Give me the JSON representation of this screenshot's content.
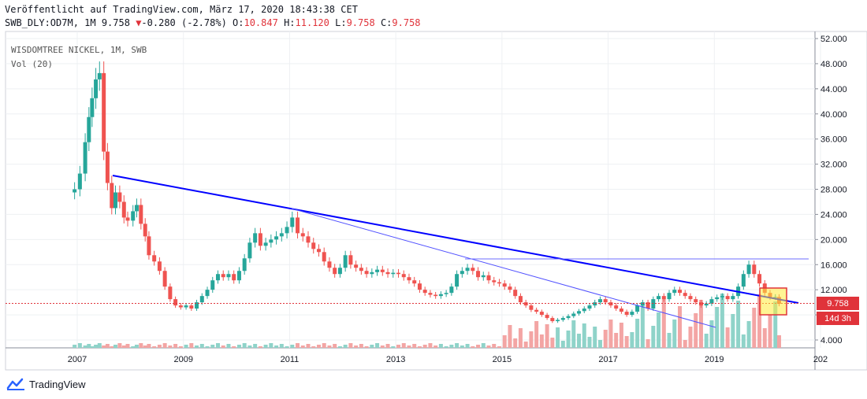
{
  "header": {
    "published": "Veröffentlicht auf TradingView.com, März 17, 2020 18:43:38 CET",
    "symbol_line": "SWB_DLY:OD7M, 1M",
    "last": "9.758",
    "change_arrow": "▼",
    "change": "-0.280 (-2.78%)",
    "o_label": "O:",
    "o_value": "10.847",
    "h_label": "H:",
    "h_value": "11.120",
    "l_label": "L:",
    "l_value": "9.758",
    "c_label": "C:",
    "c_value": "9.758"
  },
  "legend": {
    "title": "WISDOMTREE NICKEL, 1M, SWB",
    "volume": "Vol (20)"
  },
  "footer": {
    "brand": "TradingView"
  },
  "colors": {
    "up": "#26a69a",
    "down": "#ef5350",
    "up_vol": "#8fd3c9",
    "down_vol": "#f3a5a4",
    "trend": "#0000ff",
    "level": "#6d6dff",
    "last_price": "#e0333a",
    "highlight_fill": "#ffeb3b",
    "highlight_border": "#e0333a"
  },
  "chart_data": {
    "type": "candlestick",
    "title": "WISDOMTREE NICKEL, 1M, SWB",
    "y_axis": {
      "ticks": [
        "52.000",
        "48.000",
        "44.000",
        "40.000",
        "36.000",
        "32.000",
        "28.000",
        "24.000",
        "20.000",
        "16.000",
        "12.000",
        "8.000",
        "4.000"
      ],
      "range": [
        1.5,
        53
      ]
    },
    "x_axis": {
      "ticks": [
        "2007",
        "2009",
        "2011",
        "2013",
        "2015",
        "2017",
        "2019",
        "202"
      ],
      "range": [
        2006.0,
        2021.0
      ]
    },
    "last_price_label": "9.758",
    "countdown_label": "14d 3h",
    "price_path": [
      [
        2006.85,
        27.5
      ],
      [
        2006.95,
        28.0
      ],
      [
        2007.05,
        30.5
      ],
      [
        2007.15,
        35.5
      ],
      [
        2007.22,
        39.5
      ],
      [
        2007.28,
        42.5
      ],
      [
        2007.35,
        45.5
      ],
      [
        2007.42,
        46.5
      ],
      [
        2007.5,
        34.0
      ],
      [
        2007.57,
        29.0
      ],
      [
        2007.65,
        25.0
      ],
      [
        2007.72,
        27.5
      ],
      [
        2007.8,
        26.0
      ],
      [
        2007.88,
        23.5
      ],
      [
        2007.95,
        23.0
      ],
      [
        2008.05,
        24.5
      ],
      [
        2008.12,
        25.5
      ],
      [
        2008.2,
        22.5
      ],
      [
        2008.28,
        20.5
      ],
      [
        2008.35,
        17.5
      ],
      [
        2008.45,
        16.5
      ],
      [
        2008.55,
        15.0
      ],
      [
        2008.65,
        12.5
      ],
      [
        2008.75,
        10.5
      ],
      [
        2008.85,
        9.5
      ],
      [
        2008.95,
        9.2
      ],
      [
        2009.05,
        9.5
      ],
      [
        2009.15,
        9.0
      ],
      [
        2009.25,
        10.0
      ],
      [
        2009.35,
        11.0
      ],
      [
        2009.45,
        12.0
      ],
      [
        2009.55,
        13.5
      ],
      [
        2009.65,
        14.5
      ],
      [
        2009.75,
        14.0
      ],
      [
        2009.85,
        14.5
      ],
      [
        2009.95,
        13.5
      ],
      [
        2010.05,
        15.0
      ],
      [
        2010.15,
        17.0
      ],
      [
        2010.25,
        19.5
      ],
      [
        2010.35,
        21.0
      ],
      [
        2010.45,
        19.0
      ],
      [
        2010.55,
        19.5
      ],
      [
        2010.65,
        20.0
      ],
      [
        2010.75,
        20.5
      ],
      [
        2010.85,
        21.0
      ],
      [
        2010.95,
        22.0
      ],
      [
        2011.05,
        23.5
      ],
      [
        2011.15,
        21.0
      ],
      [
        2011.25,
        20.5
      ],
      [
        2011.35,
        19.5
      ],
      [
        2011.45,
        18.5
      ],
      [
        2011.55,
        18.0
      ],
      [
        2011.65,
        16.5
      ],
      [
        2011.75,
        15.5
      ],
      [
        2011.85,
        14.5
      ],
      [
        2011.95,
        15.5
      ],
      [
        2012.05,
        17.5
      ],
      [
        2012.15,
        16.0
      ],
      [
        2012.25,
        15.5
      ],
      [
        2012.35,
        15.0
      ],
      [
        2012.45,
        14.5
      ],
      [
        2012.55,
        14.8
      ],
      [
        2012.65,
        15.2
      ],
      [
        2012.75,
        14.8
      ],
      [
        2012.85,
        14.5
      ],
      [
        2012.95,
        14.7
      ],
      [
        2013.05,
        14.5
      ],
      [
        2013.15,
        14.0
      ],
      [
        2013.25,
        13.5
      ],
      [
        2013.35,
        13.0
      ],
      [
        2013.45,
        12.0
      ],
      [
        2013.55,
        11.5
      ],
      [
        2013.65,
        11.2
      ],
      [
        2013.75,
        11.0
      ],
      [
        2013.85,
        11.3
      ],
      [
        2013.95,
        11.5
      ],
      [
        2014.05,
        12.5
      ],
      [
        2014.15,
        14.5
      ],
      [
        2014.25,
        15.0
      ],
      [
        2014.35,
        15.5
      ],
      [
        2014.45,
        15.0
      ],
      [
        2014.55,
        14.0
      ],
      [
        2014.65,
        14.3
      ],
      [
        2014.75,
        13.5
      ],
      [
        2014.85,
        13.2
      ],
      [
        2014.95,
        13.0
      ],
      [
        2015.05,
        12.5
      ],
      [
        2015.15,
        12.0
      ],
      [
        2015.25,
        11.0
      ],
      [
        2015.35,
        10.0
      ],
      [
        2015.45,
        9.5
      ],
      [
        2015.55,
        8.8
      ],
      [
        2015.65,
        8.5
      ],
      [
        2015.75,
        8.0
      ],
      [
        2015.85,
        7.5
      ],
      [
        2015.95,
        7.0
      ],
      [
        2016.05,
        7.2
      ],
      [
        2016.15,
        7.5
      ],
      [
        2016.25,
        7.8
      ],
      [
        2016.35,
        8.2
      ],
      [
        2016.45,
        8.6
      ],
      [
        2016.55,
        9.0
      ],
      [
        2016.65,
        9.5
      ],
      [
        2016.75,
        10.0
      ],
      [
        2016.85,
        10.5
      ],
      [
        2016.95,
        10.0
      ],
      [
        2017.05,
        9.5
      ],
      [
        2017.15,
        9.0
      ],
      [
        2017.25,
        8.5
      ],
      [
        2017.35,
        8.0
      ],
      [
        2017.45,
        8.5
      ],
      [
        2017.55,
        9.5
      ],
      [
        2017.65,
        10.0
      ],
      [
        2017.75,
        9.0
      ],
      [
        2017.85,
        10.5
      ],
      [
        2017.95,
        11.0
      ],
      [
        2018.05,
        10.5
      ],
      [
        2018.15,
        11.5
      ],
      [
        2018.25,
        12.0
      ],
      [
        2018.35,
        11.5
      ],
      [
        2018.45,
        11.0
      ],
      [
        2018.55,
        10.5
      ],
      [
        2018.65,
        10.0
      ],
      [
        2018.75,
        9.5
      ],
      [
        2018.85,
        9.8
      ],
      [
        2018.95,
        10.5
      ],
      [
        2019.05,
        10.8
      ],
      [
        2019.15,
        11.0
      ],
      [
        2019.25,
        10.5
      ],
      [
        2019.35,
        11.0
      ],
      [
        2019.45,
        12.5
      ],
      [
        2019.55,
        14.5
      ],
      [
        2019.65,
        16.0
      ],
      [
        2019.75,
        14.5
      ],
      [
        2019.85,
        13.0
      ],
      [
        2019.95,
        11.5
      ],
      [
        2020.05,
        10.8
      ],
      [
        2020.15,
        10.85
      ],
      [
        2020.22,
        9.758
      ]
    ]
  }
}
